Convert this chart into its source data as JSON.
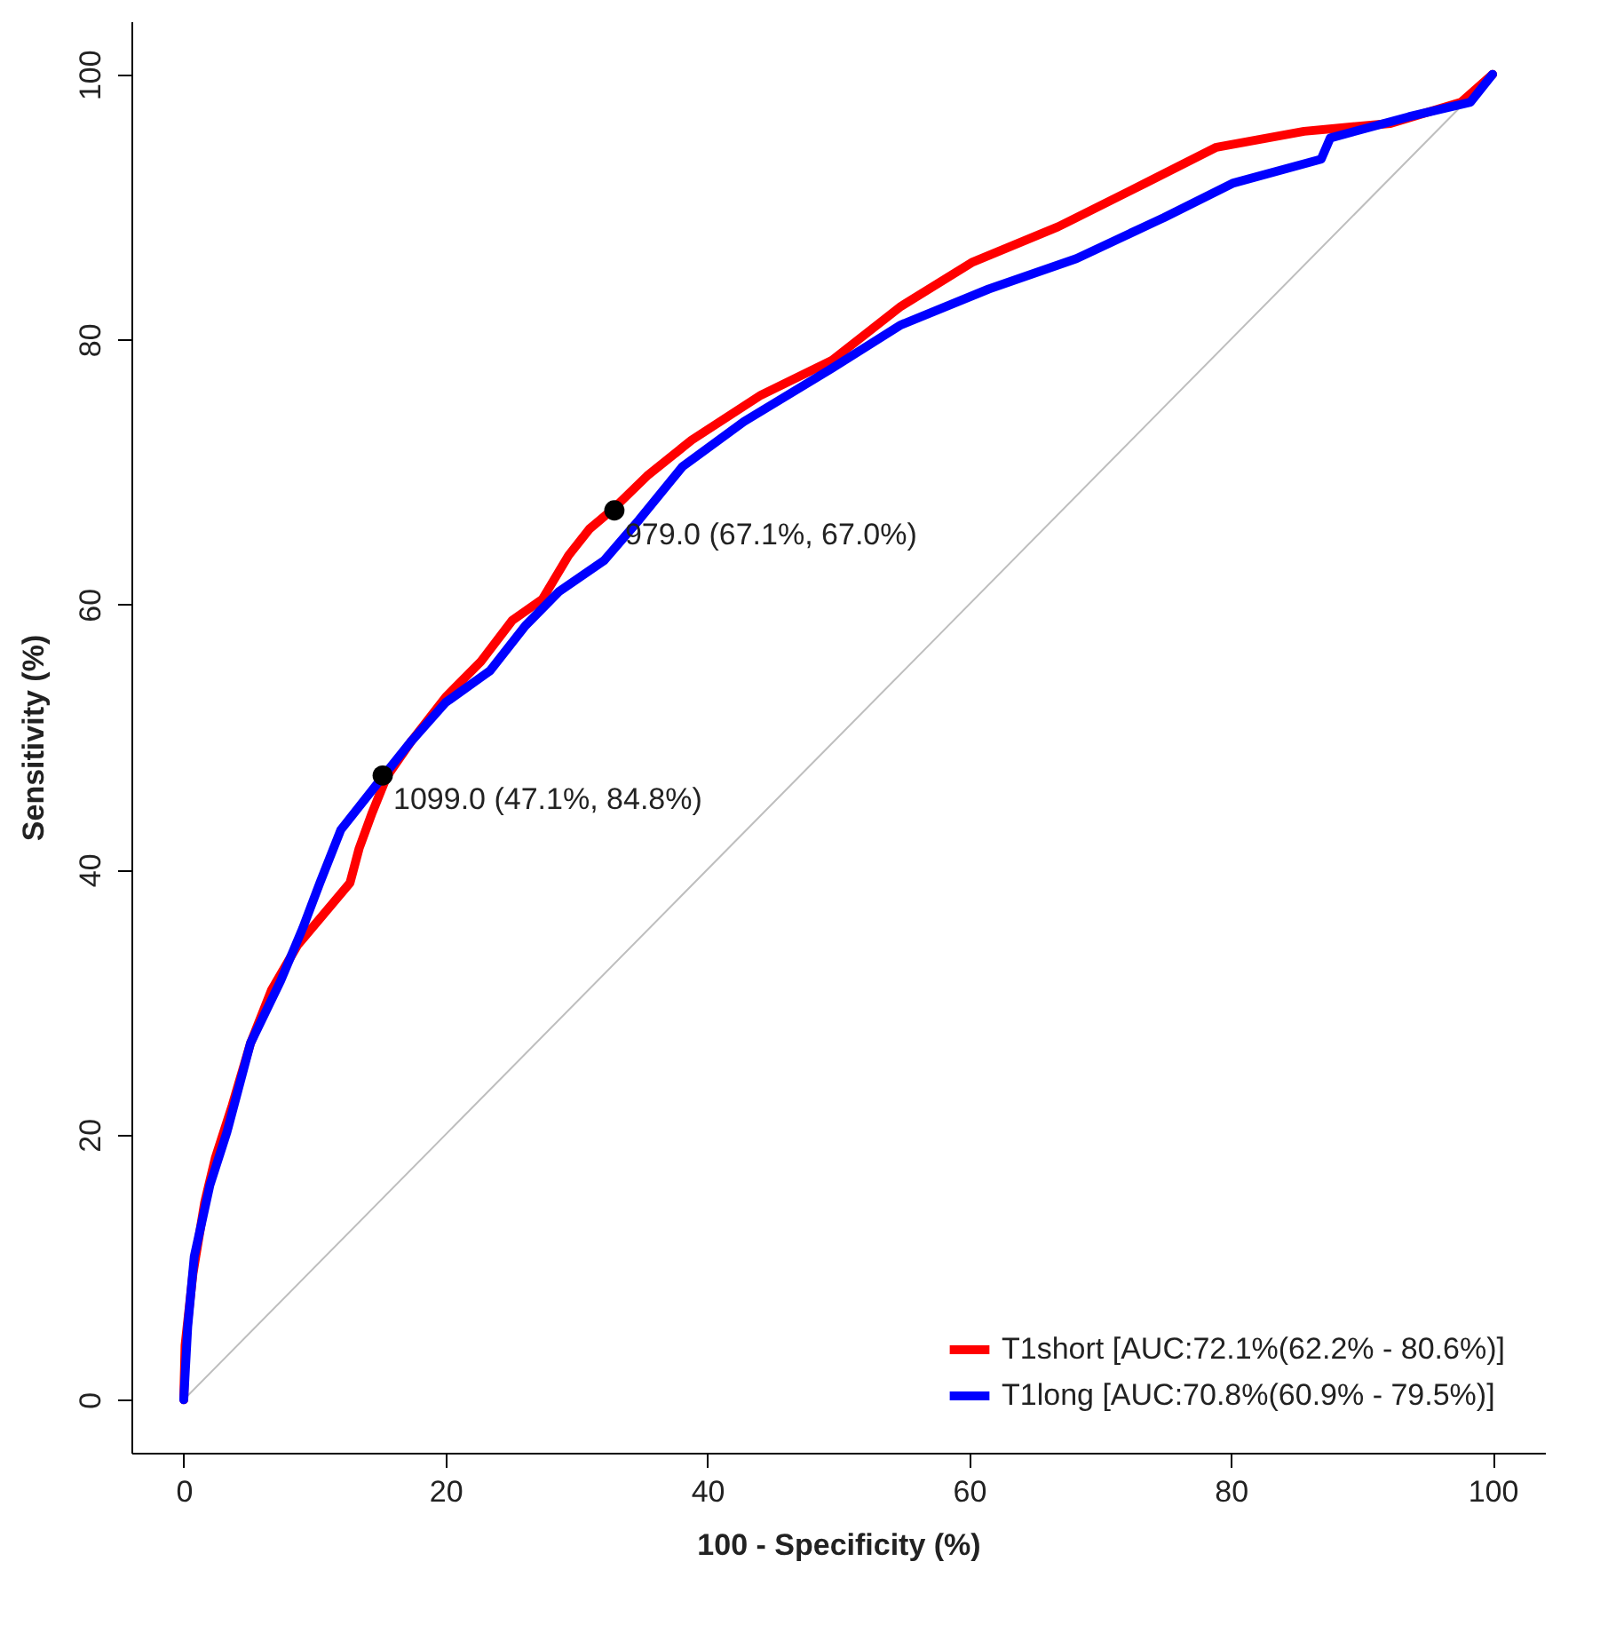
{
  "chart_data": {
    "type": "line",
    "xlabel": "100 - Specificity (%)",
    "ylabel": "Sensitivity (%)",
    "xlim": [
      -4,
      104
    ],
    "ylim": [
      -4,
      104
    ],
    "xticks": [
      0,
      20,
      40,
      60,
      80,
      100
    ],
    "yticks": [
      0,
      20,
      40,
      60,
      80,
      100
    ],
    "legend": "bottom right",
    "line_style": "solid",
    "series": [
      {
        "type": "line",
        "color": "#bebebe",
        "x": [
          0,
          100
        ],
        "values": [
          0,
          100
        ]
      },
      {
        "name": "T1short [AUC:72.1%(62.2% - 80.6%)]",
        "color": "#ff0000",
        "x": [
          0,
          0.1,
          0.7,
          1.6,
          2.4,
          3.7,
          5.1,
          6.7,
          8.7,
          11,
          12.7,
          13.4,
          14.4,
          15.5,
          17.4,
          20,
          22.7,
          25.1,
          27.4,
          29.4,
          31,
          32.8,
          35.4,
          38.8,
          44.1,
          49.5,
          54.8,
          60.2,
          66.8,
          73.5,
          78.9,
          85.6,
          92.2,
          97.6,
          100
        ],
        "values": [
          0,
          4.1,
          9.5,
          14.9,
          18.2,
          22.2,
          26.9,
          30.9,
          34.3,
          37,
          39,
          41.6,
          44.3,
          47,
          49.7,
          53,
          55.7,
          58.8,
          60.4,
          63.7,
          65.7,
          67.2,
          69.7,
          72.4,
          75.8,
          78.4,
          82.5,
          85.8,
          88.5,
          91.8,
          94.5,
          95.7,
          96.3,
          97.9,
          100
        ]
      },
      {
        "name": "T1long [AUC:70.8%(60.9% - 79.5%)]",
        "color": "#0000ff",
        "x": [
          0,
          0.3,
          0.8,
          2,
          3.3,
          5.1,
          7.4,
          9.1,
          10.4,
          12,
          15.2,
          17.4,
          20,
          23.4,
          26.1,
          28.7,
          32.1,
          34.8,
          38.1,
          42.8,
          49.5,
          54.8,
          61.5,
          68.2,
          74.9,
          80.2,
          86.9,
          87.6,
          93.6,
          98.3,
          100
        ],
        "values": [
          0,
          5.5,
          10.8,
          16.2,
          20.2,
          26.9,
          31.6,
          35.6,
          39,
          43,
          47,
          49.7,
          52.6,
          55,
          58.4,
          61,
          63.3,
          66.4,
          70.4,
          73.8,
          77.8,
          81.1,
          83.8,
          86.1,
          89.2,
          91.8,
          93.6,
          95.2,
          96.8,
          97.9,
          100
        ]
      },
      {
        "type": "scatter",
        "color": "#000000",
        "x": [
          15.2,
          32.9
        ],
        "values": [
          47.1,
          67.1
        ]
      }
    ],
    "annotations": [
      {
        "text": "1099.0 (47.1%, 84.8%)",
        "x": 15.2,
        "y": 47.1
      },
      {
        "text": "979.0 (67.1%, 67.0%)",
        "x": 32.9,
        "y": 67.1
      }
    ]
  }
}
